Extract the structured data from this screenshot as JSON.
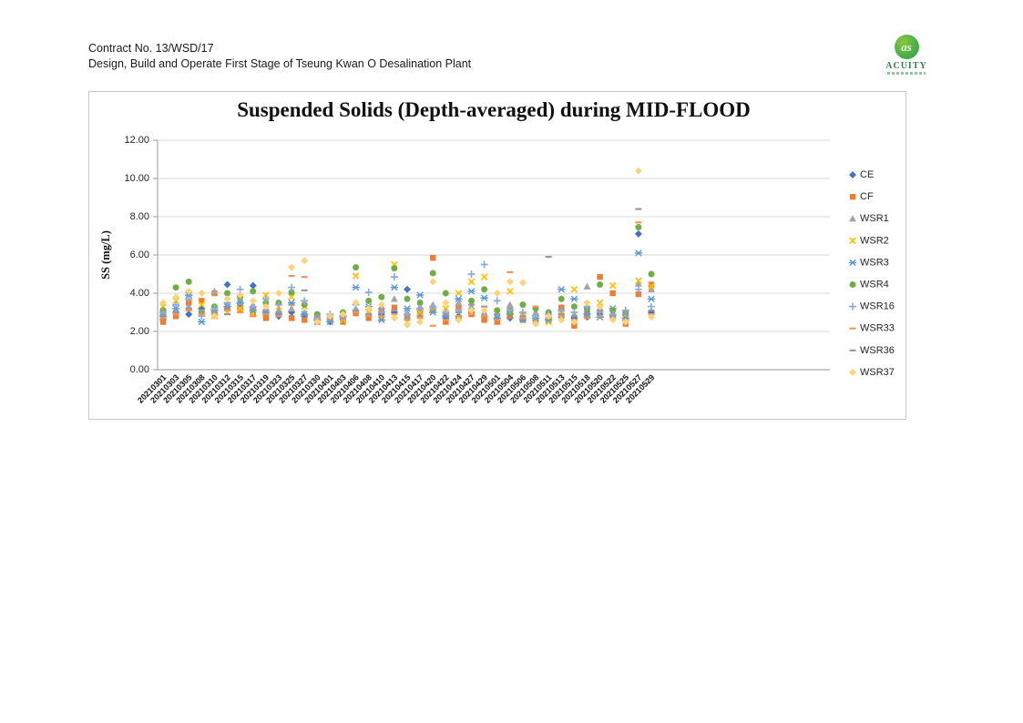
{
  "page": {
    "header": {
      "line1": "Contract No. 13/WSD/17",
      "line2": "Design, Build and Operate First Stage of Tseung Kwan O Desalination Plant"
    },
    "logo": {
      "text": "ACUITY"
    }
  },
  "chart_data": {
    "type": "scatter",
    "title": "Suspended Solids (Depth-averaged) during MID-FLOOD",
    "xlabel": "",
    "ylabel": "SS (mg/L)",
    "ylim": [
      0,
      12
    ],
    "ytick_step": 2,
    "ytick_labels": [
      "0.00",
      "2.00",
      "4.00",
      "6.00",
      "8.00",
      "10.00",
      "12.00"
    ],
    "grid": true,
    "legend_position": "right",
    "categories": [
      "20210301",
      "20210303",
      "20210305",
      "20210308",
      "20210310",
      "20210312",
      "20210315",
      "20210317",
      "20210319",
      "20210323",
      "20210325",
      "20210327",
      "20210330",
      "20210401",
      "20210403",
      "20210406",
      "20210408",
      "20210410",
      "20210413",
      "20210415",
      "20210417",
      "20210420",
      "20210422",
      "20210424",
      "20210427",
      "20210429",
      "20210501",
      "20210504",
      "20210506",
      "20210508",
      "20210511",
      "20210513",
      "20210515",
      "20210518",
      "20210520",
      "20210522",
      "20210525",
      "20210527",
      "20210529"
    ],
    "values_note": "values in mg/L, read approximately from plot",
    "series": [
      {
        "name": "CE",
        "marker": "diamond",
        "color": "#4472C4",
        "values": [
          2.6,
          3.0,
          2.9,
          3.2,
          3.0,
          4.45,
          3.3,
          4.4,
          2.9,
          2.8,
          3.0,
          2.8,
          2.6,
          2.5,
          2.7,
          3.0,
          2.8,
          2.9,
          3.0,
          4.2,
          3.1,
          3.2,
          2.7,
          2.8,
          3.0,
          2.8,
          2.6,
          2.7,
          2.7,
          2.6,
          2.7,
          2.75,
          2.7,
          2.75,
          2.9,
          2.8,
          2.6,
          7.1,
          3.0
        ]
      },
      {
        "name": "CF",
        "marker": "square",
        "color": "#ED7D31",
        "values": [
          2.5,
          2.8,
          3.5,
          3.6,
          4.0,
          3.2,
          3.1,
          3.0,
          2.7,
          2.9,
          2.7,
          2.6,
          2.5,
          2.6,
          2.5,
          2.95,
          2.7,
          3.1,
          3.25,
          2.8,
          2.9,
          5.85,
          2.5,
          3.3,
          2.9,
          2.6,
          2.5,
          2.8,
          2.6,
          2.5,
          2.6,
          3.25,
          2.3,
          3.0,
          4.85,
          4.0,
          2.4,
          3.95,
          4.45
        ]
      },
      {
        "name": "WSR1",
        "marker": "triangle",
        "color": "#A5A5A5",
        "values": [
          2.9,
          3.1,
          3.3,
          3.0,
          4.1,
          3.4,
          3.6,
          3.4,
          3.2,
          3.1,
          3.2,
          3.0,
          2.7,
          2.8,
          2.9,
          3.2,
          3.0,
          3.3,
          3.7,
          3.0,
          3.3,
          3.4,
          2.9,
          3.5,
          3.3,
          3.0,
          2.8,
          3.4,
          2.9,
          3.0,
          2.8,
          3.0,
          2.9,
          4.35,
          3.2,
          3.0,
          3.05,
          4.5,
          4.2
        ]
      },
      {
        "name": "WSR2",
        "marker": "x",
        "color": "#FFC000",
        "values": [
          3.3,
          3.6,
          4.0,
          3.4,
          2.8,
          3.0,
          3.2,
          2.9,
          3.9,
          3.3,
          3.8,
          3.3,
          2.8,
          2.7,
          2.6,
          4.9,
          3.0,
          2.7,
          5.5,
          2.5,
          3.0,
          3.1,
          3.2,
          4.0,
          4.6,
          4.85,
          3.0,
          4.1,
          2.8,
          2.5,
          2.5,
          2.9,
          4.2,
          3.4,
          3.5,
          4.4,
          2.8,
          4.65,
          4.35
        ]
      },
      {
        "name": "WSR3",
        "marker": "asterisk",
        "color": "#5B9BD5",
        "values": [
          2.8,
          3.2,
          3.9,
          2.5,
          3.1,
          3.3,
          3.5,
          3.1,
          3.0,
          2.9,
          3.5,
          2.9,
          2.6,
          2.5,
          2.8,
          4.3,
          3.3,
          2.6,
          4.3,
          3.2,
          3.9,
          3.0,
          2.8,
          3.7,
          4.1,
          3.75,
          2.7,
          2.9,
          2.6,
          2.7,
          2.6,
          4.2,
          3.7,
          2.9,
          2.75,
          3.2,
          2.7,
          6.1,
          3.7
        ]
      },
      {
        "name": "WSR4",
        "marker": "circle",
        "color": "#70AD47",
        "values": [
          3.1,
          4.3,
          4.6,
          3.0,
          3.3,
          4.0,
          3.8,
          4.1,
          3.5,
          3.5,
          4.05,
          3.4,
          2.9,
          2.8,
          3.0,
          5.35,
          3.6,
          3.8,
          5.3,
          3.7,
          3.5,
          5.05,
          4.0,
          2.7,
          3.6,
          4.2,
          3.1,
          3.0,
          3.4,
          3.2,
          3.0,
          3.7,
          3.3,
          3.2,
          4.45,
          3.1,
          3.0,
          7.45,
          5.0
        ]
      },
      {
        "name": "WSR16",
        "marker": "plus",
        "color": "#8FAADC",
        "values": [
          3.0,
          3.4,
          3.7,
          2.8,
          3.2,
          3.5,
          4.2,
          3.3,
          3.7,
          3.4,
          4.3,
          3.6,
          2.7,
          2.9,
          2.8,
          3.4,
          4.05,
          3.0,
          4.85,
          2.9,
          3.2,
          3.3,
          3.0,
          3.1,
          5.0,
          5.5,
          3.6,
          3.1,
          3.0,
          2.8,
          2.9,
          3.1,
          3.0,
          3.3,
          3.0,
          2.9,
          3.1,
          4.2,
          3.3
        ]
      },
      {
        "name": "WSR33",
        "marker": "dash",
        "color": "#F1975A",
        "values": [
          2.7,
          2.9,
          3.1,
          2.9,
          2.9,
          3.1,
          3.0,
          2.8,
          2.9,
          2.8,
          4.9,
          4.85,
          2.6,
          2.7,
          2.6,
          3.0,
          2.8,
          2.8,
          2.9,
          2.6,
          2.7,
          2.3,
          2.6,
          2.8,
          2.9,
          2.8,
          2.6,
          5.1,
          2.7,
          3.3,
          2.7,
          2.8,
          2.6,
          2.7,
          2.8,
          2.7,
          2.6,
          7.7,
          2.9
        ]
      },
      {
        "name": "WSR36",
        "marker": "dash",
        "color": "#9A9A9A",
        "values": [
          2.9,
          3.0,
          3.2,
          3.1,
          3.0,
          2.9,
          3.4,
          3.2,
          3.1,
          3.0,
          3.4,
          4.15,
          2.8,
          2.6,
          2.7,
          3.1,
          2.9,
          3.2,
          3.1,
          2.7,
          2.8,
          3.1,
          2.9,
          3.0,
          3.4,
          3.3,
          2.9,
          3.2,
          2.8,
          2.6,
          5.9,
          2.9,
          2.8,
          2.8,
          3.1,
          2.8,
          2.9,
          8.4,
          3.1
        ]
      },
      {
        "name": "WSR37",
        "marker": "diamond",
        "color": "#FFD37B",
        "values": [
          3.5,
          3.8,
          4.1,
          4.0,
          2.8,
          3.7,
          3.9,
          3.6,
          3.3,
          4.0,
          5.35,
          5.7,
          2.5,
          2.8,
          2.9,
          3.5,
          3.2,
          3.4,
          2.7,
          2.35,
          2.5,
          4.6,
          3.5,
          2.6,
          3.1,
          3.1,
          4.0,
          4.6,
          4.55,
          2.4,
          2.8,
          2.6,
          2.5,
          3.5,
          3.3,
          2.6,
          2.5,
          10.4,
          2.75
        ]
      }
    ]
  }
}
